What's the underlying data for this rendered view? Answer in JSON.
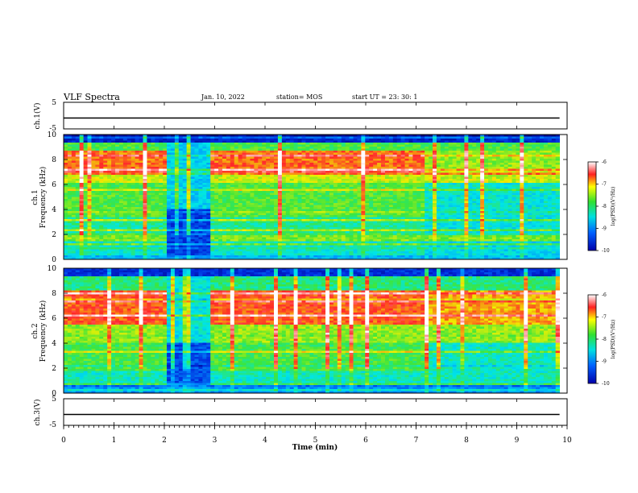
{
  "header": {
    "title": "VLF Spectra",
    "date": "Jan. 10, 2022",
    "station": "station= MOS",
    "start": "start  UT =  23: 30: 1"
  },
  "chart_data": [
    {
      "type": "line",
      "panel": "channel 1 waveform",
      "ylabel": "ch.1(V)",
      "xlim": [
        0,
        10
      ],
      "ylim": [
        -5,
        5
      ],
      "yticks": [
        "5",
        "-5"
      ],
      "series": [
        {
          "x": [
            0,
            9.85
          ],
          "values": [
            0,
            0
          ]
        }
      ]
    },
    {
      "type": "heatmap",
      "panel": "channel 1 spectrogram",
      "ylabel": "ch.1\nFrequency (kHz)",
      "xlim": [
        0,
        10
      ],
      "ylim": [
        0,
        10
      ],
      "yticks": [
        "0",
        "2",
        "4",
        "6",
        "8",
        "10"
      ],
      "data_end_min": 9.85,
      "colorbar": {
        "label": "log(PSD)(V²/Hz)",
        "range": [
          -10,
          -6
        ],
        "ticks": [
          "-6",
          "-7",
          "-8",
          "-9",
          "-10"
        ]
      }
    },
    {
      "type": "heatmap",
      "panel": "channel 2 spectrogram",
      "ylabel": "ch.2\nFrequency (kHz)",
      "xlim": [
        0,
        10
      ],
      "ylim": [
        0,
        10
      ],
      "yticks": [
        "0",
        "2",
        "4",
        "6",
        "8",
        "10"
      ],
      "data_end_min": 9.85,
      "colorbar": {
        "label": "log(PSD)(V²/Hz)",
        "range": [
          -10,
          -6
        ],
        "ticks": [
          "-6",
          "-7",
          "-8",
          "-9",
          "-10"
        ]
      }
    },
    {
      "type": "line",
      "panel": "channel 3 waveform",
      "ylabel": "ch.3(V)",
      "xlim": [
        0,
        10
      ],
      "ylim": [
        -5,
        5
      ],
      "yticks": [
        "5",
        "-5"
      ],
      "xlabel": "Time (min)",
      "xticks": [
        "0",
        "1",
        "2",
        "3",
        "4",
        "5",
        "6",
        "7",
        "8",
        "9",
        "10"
      ],
      "series": [
        {
          "x": [
            0,
            9.85
          ],
          "values": [
            0,
            0
          ]
        }
      ]
    }
  ]
}
